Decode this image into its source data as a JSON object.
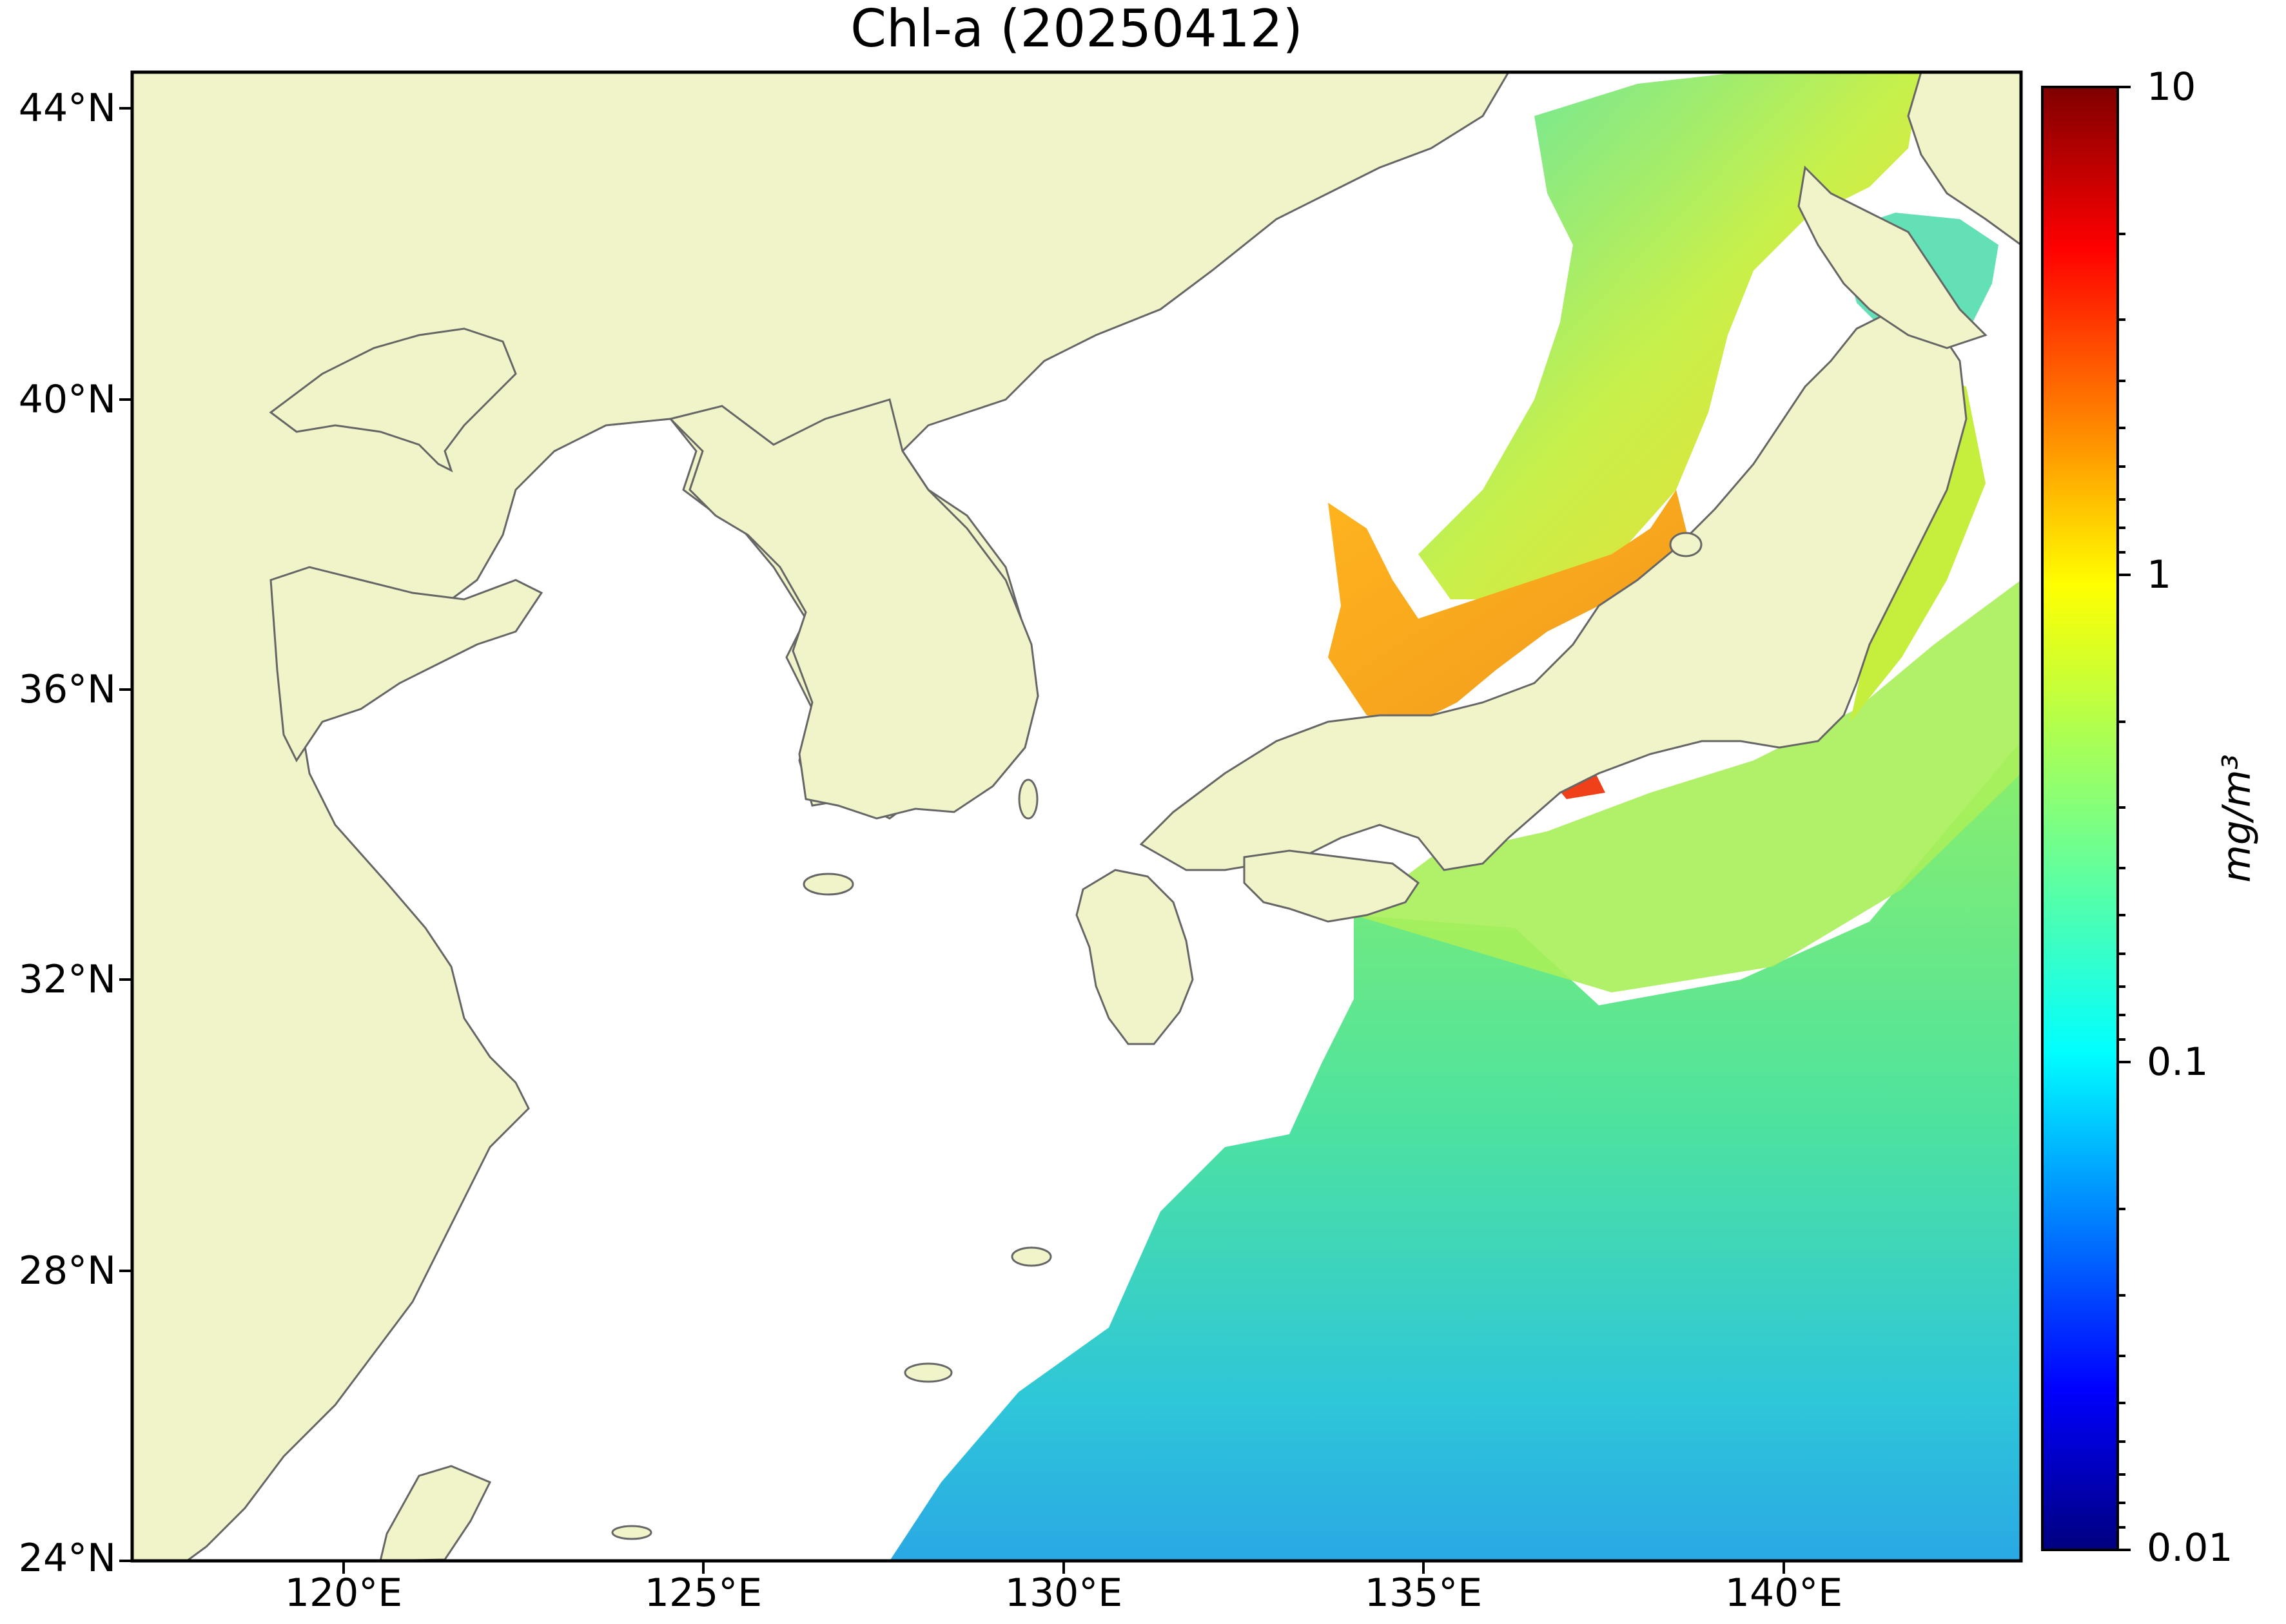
{
  "title": "Chl-a (20250412)",
  "colorbar": {
    "unit_label": "mg/m³",
    "tick_labels": [
      "10",
      "1",
      "0.1",
      "0.01"
    ],
    "scale": "log",
    "range": [
      0.01,
      10
    ],
    "colormap": "jet",
    "colors": [
      "#00007f",
      "#0000ff",
      "#007fff",
      "#00ffff",
      "#7fff7f",
      "#ffff00",
      "#ff7f00",
      "#ff0000",
      "#7f0000"
    ]
  },
  "axes": {
    "lat_ticks": [
      "44°N",
      "40°N",
      "36°N",
      "32°N",
      "28°N",
      "24°N"
    ],
    "lon_ticks": [
      "120°E",
      "125°E",
      "130°E",
      "135°E",
      "140°E"
    ],
    "lat_range": [
      24,
      44.5
    ],
    "lon_range": [
      116.8,
      143
    ]
  },
  "colors": {
    "land": "#f0f4c8",
    "coastline": "#666666",
    "water_nodata": "#ffffff"
  }
}
